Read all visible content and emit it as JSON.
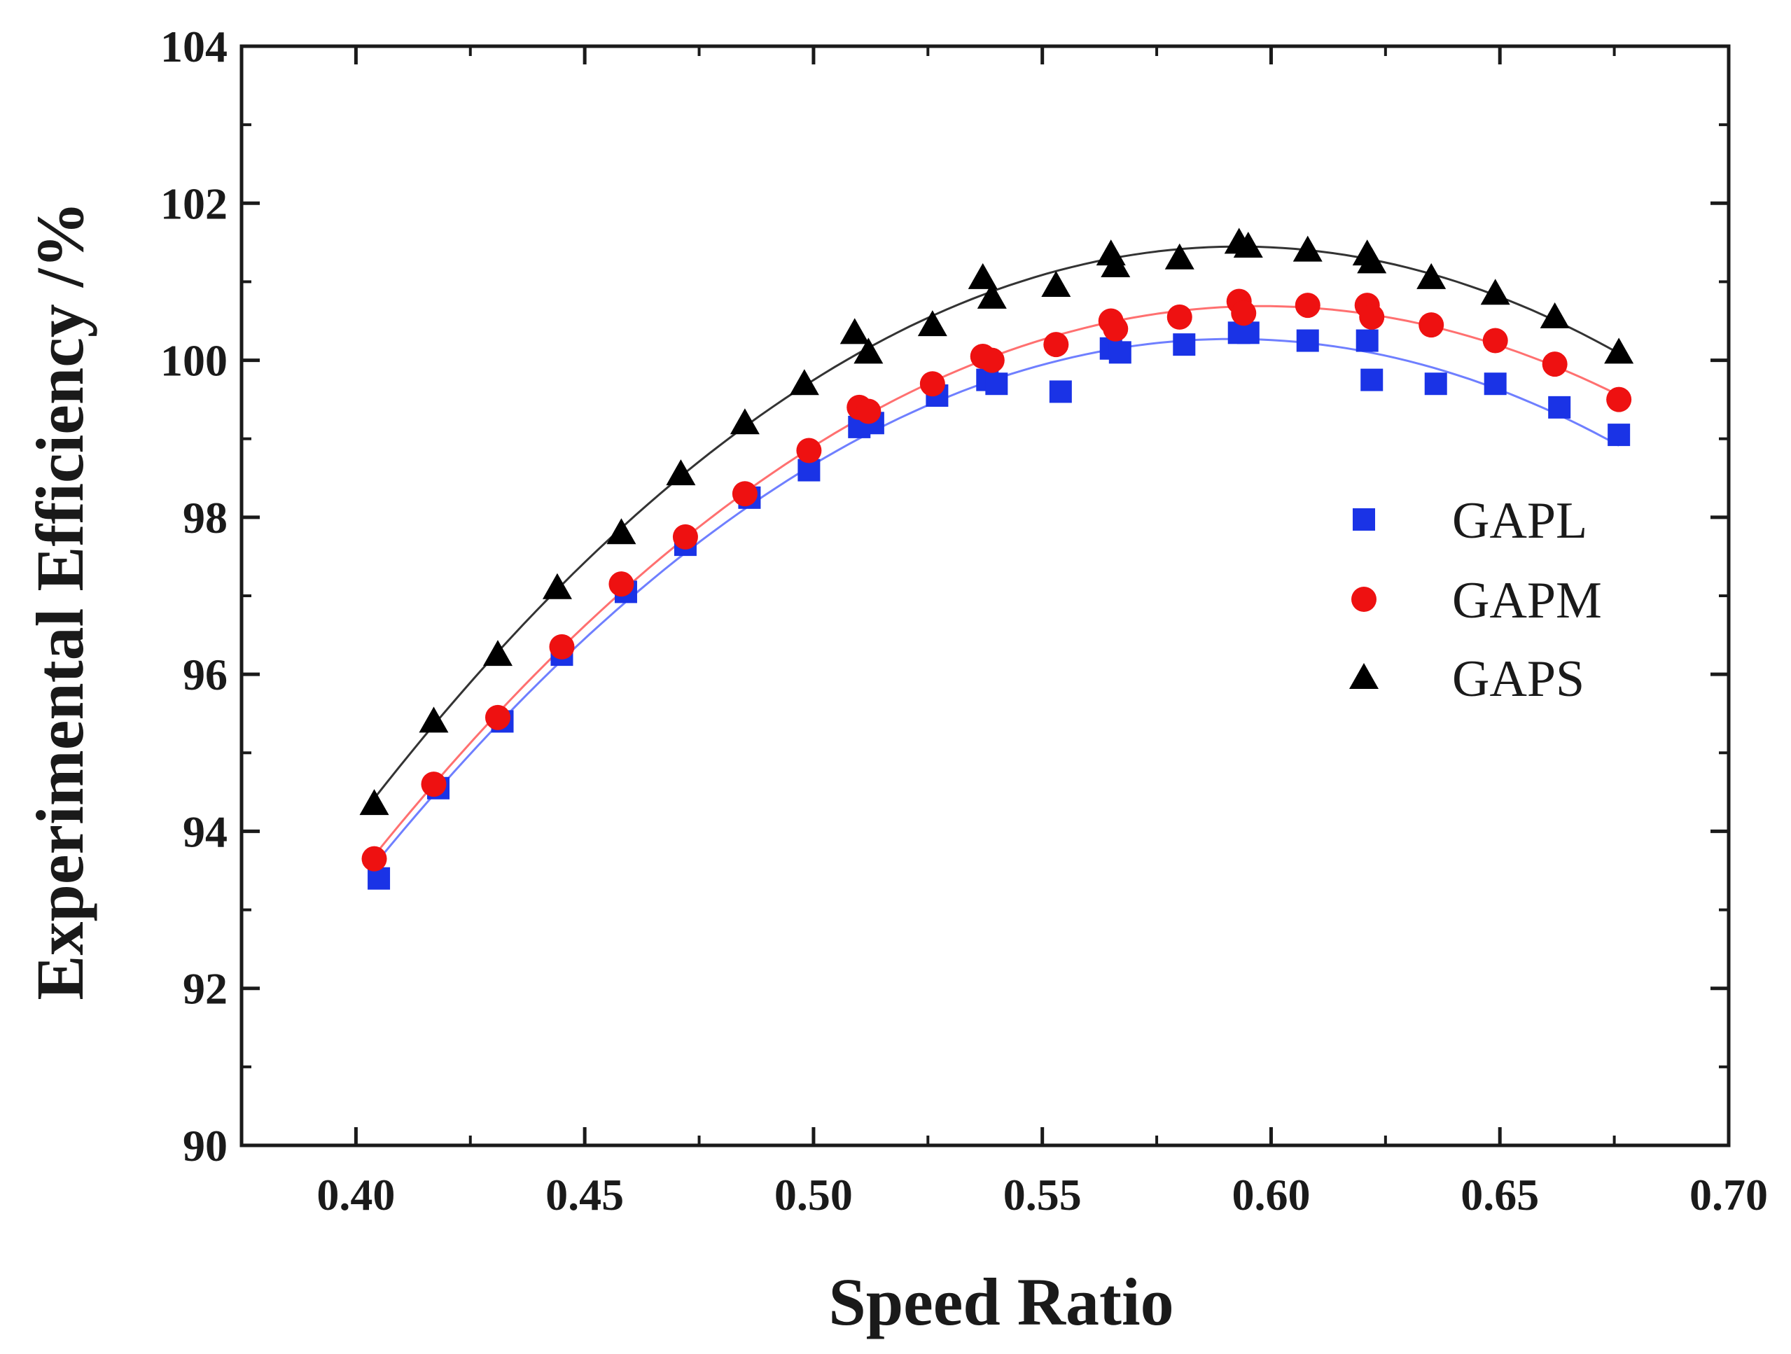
{
  "chart_data": {
    "type": "scatter",
    "title": "",
    "xlabel": "Speed Ratio",
    "ylabel": "Experimental Efficiency /%",
    "xlim": [
      0.375,
      0.7
    ],
    "ylim": [
      90,
      104
    ],
    "xticks": [
      "0.40",
      "0.45",
      "0.50",
      "0.55",
      "0.60",
      "0.65",
      "0.70"
    ],
    "yticks": [
      "90",
      "92",
      "94",
      "96",
      "98",
      "100",
      "102",
      "104"
    ],
    "legend_position": "right",
    "series": [
      {
        "name": "GAPL",
        "marker": "square",
        "color": "#1a33e6",
        "fit_color": "#6f7fff",
        "x": [
          0.405,
          0.418,
          0.432,
          0.445,
          0.459,
          0.472,
          0.486,
          0.499,
          0.51,
          0.513,
          0.527,
          0.538,
          0.54,
          0.554,
          0.565,
          0.567,
          0.581,
          0.593,
          0.595,
          0.608,
          0.621,
          0.622,
          0.636,
          0.649,
          0.663,
          0.676
        ],
        "y": [
          93.4,
          94.55,
          95.4,
          96.25,
          97.05,
          97.65,
          98.25,
          98.6,
          99.15,
          99.2,
          99.55,
          99.75,
          99.7,
          99.6,
          100.15,
          100.1,
          100.2,
          100.35,
          100.35,
          100.25,
          100.25,
          99.75,
          99.7,
          99.7,
          99.4,
          99.05
        ]
      },
      {
        "name": "GAPM",
        "marker": "circle",
        "color": "#ee1111",
        "fit_color": "#ff7070",
        "x": [
          0.404,
          0.417,
          0.431,
          0.445,
          0.458,
          0.472,
          0.485,
          0.499,
          0.51,
          0.512,
          0.526,
          0.537,
          0.539,
          0.553,
          0.565,
          0.566,
          0.58,
          0.593,
          0.594,
          0.608,
          0.621,
          0.622,
          0.635,
          0.649,
          0.662,
          0.676
        ],
        "y": [
          93.65,
          94.6,
          95.45,
          96.35,
          97.15,
          97.75,
          98.3,
          98.85,
          99.4,
          99.35,
          99.7,
          100.05,
          100.0,
          100.2,
          100.5,
          100.4,
          100.55,
          100.75,
          100.6,
          100.7,
          100.7,
          100.55,
          100.45,
          100.25,
          99.95,
          99.5
        ]
      },
      {
        "name": "GAPS",
        "marker": "triangle",
        "color": "#000000",
        "fit_color": "#333333",
        "x": [
          0.404,
          0.417,
          0.431,
          0.444,
          0.458,
          0.471,
          0.485,
          0.498,
          0.509,
          0.512,
          0.526,
          0.537,
          0.539,
          0.553,
          0.565,
          0.566,
          0.58,
          0.593,
          0.595,
          0.608,
          0.621,
          0.622,
          0.635,
          0.649,
          0.662,
          0.676
        ],
        "y": [
          94.35,
          95.4,
          96.25,
          97.1,
          97.8,
          98.55,
          99.2,
          99.7,
          100.35,
          100.1,
          100.45,
          101.05,
          100.8,
          100.95,
          101.35,
          101.2,
          101.3,
          101.5,
          101.45,
          101.4,
          101.35,
          101.25,
          101.05,
          100.85,
          100.55,
          100.1
        ]
      }
    ]
  }
}
